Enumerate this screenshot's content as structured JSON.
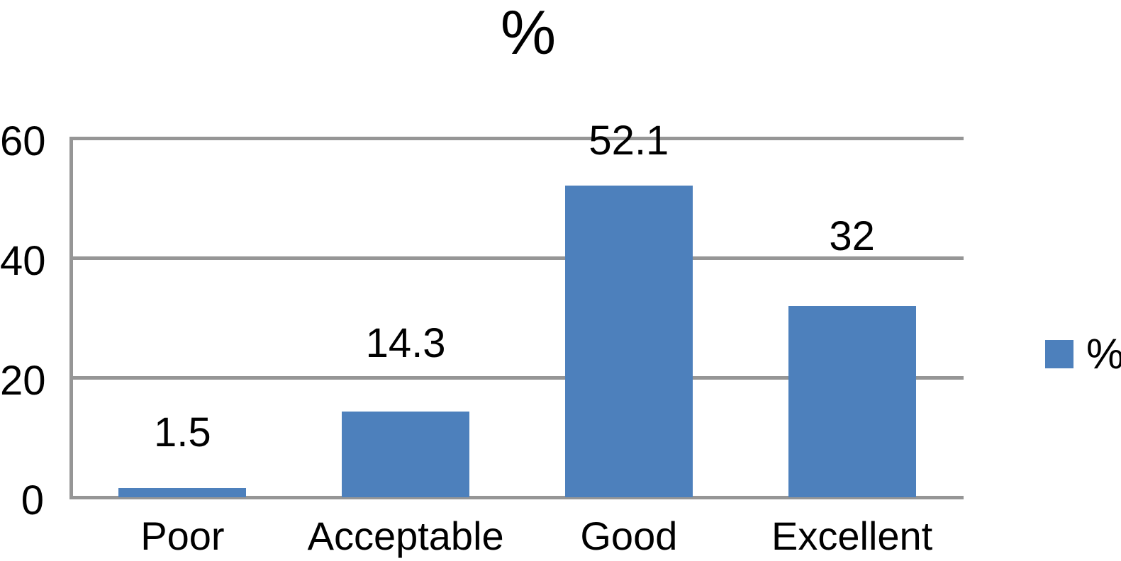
{
  "chart_data": {
    "type": "bar",
    "title": "%",
    "categories": [
      "Poor",
      "Acceptable",
      "Good",
      "Excellent"
    ],
    "values": [
      1.5,
      14.3,
      52.1,
      32
    ],
    "data_labels": [
      "1.5",
      "14.3",
      "52.1",
      "32"
    ],
    "series_name": "%",
    "legend": {
      "label": "%",
      "position": "right"
    },
    "xlabel": "",
    "ylabel": "",
    "ylim": [
      0,
      60
    ],
    "yticks": [
      0,
      20,
      40,
      60
    ],
    "grid": "horizontal",
    "colors": {
      "bar": "#4d80bc",
      "gridline": "#969696",
      "text": "#000000",
      "background": "#ffffff"
    }
  }
}
